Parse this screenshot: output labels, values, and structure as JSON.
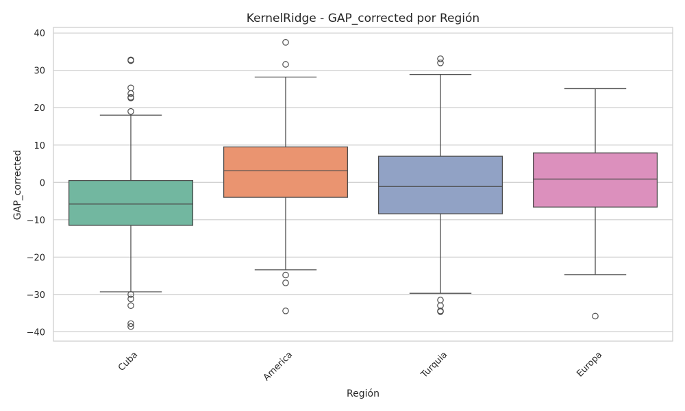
{
  "chart_data": {
    "type": "boxplot",
    "title": "KernelRidge - GAP_corrected por Región",
    "xlabel": "Región",
    "ylabel": "GAP_corrected",
    "ylim": [
      -42.5,
      41.5
    ],
    "yticks": [
      40,
      30,
      20,
      10,
      0,
      -10,
      -20,
      -30,
      -40
    ],
    "grid": true,
    "categories": [
      "Cuba",
      "America",
      "Turquia",
      "Europa"
    ],
    "boxes": [
      {
        "category": "Cuba",
        "color": "#72b7a0",
        "whisker_low": -29.3,
        "q1": -11.5,
        "median": -5.8,
        "q3": 0.5,
        "whisker_high": 18.0,
        "outliers": [
          32.8,
          32.6,
          25.3,
          23.8,
          22.8,
          22.6,
          19.0,
          -30.0,
          -31.2,
          -33.0,
          -37.8,
          -38.6
        ]
      },
      {
        "category": "America",
        "color": "#ea9470",
        "whisker_low": -23.4,
        "q1": -4.0,
        "median": 3.1,
        "q3": 9.5,
        "whisker_high": 28.2,
        "outliers": [
          37.5,
          31.6,
          -24.8,
          -26.9,
          -34.4
        ]
      },
      {
        "category": "Turquia",
        "color": "#91a2c5",
        "whisker_low": -29.7,
        "q1": -8.4,
        "median": -1.1,
        "q3": 7.0,
        "whisker_high": 28.9,
        "outliers": [
          33.1,
          32.0,
          -31.5,
          -33.0,
          -34.4,
          -34.6
        ]
      },
      {
        "category": "Europa",
        "color": "#dc90bd",
        "whisker_low": -24.7,
        "q1": -6.6,
        "median": 0.9,
        "q3": 7.9,
        "whisker_high": 25.1,
        "outliers": [
          -35.8
        ]
      }
    ]
  }
}
